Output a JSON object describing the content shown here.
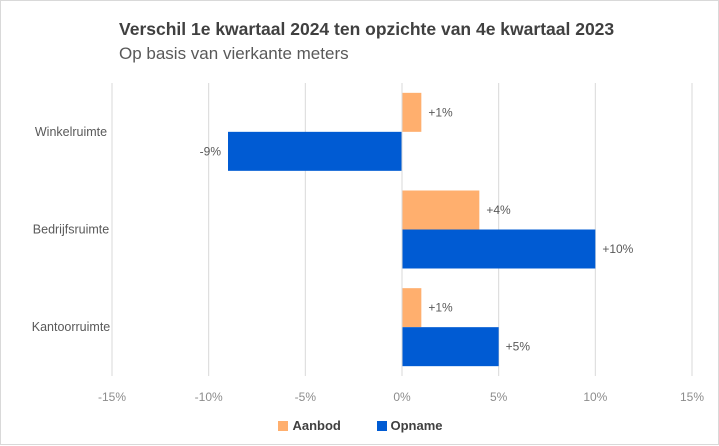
{
  "chart_data": {
    "type": "bar",
    "orientation": "horizontal",
    "title": "Verschil 1e kwartaal 2024 ten opzichte van 4e kwartaal 2023",
    "subtitle": "Op basis van vierkante meters",
    "categories": [
      "Winkelruimte",
      "Bedrijfsruimte",
      "Kantoorruimte"
    ],
    "series": [
      {
        "name": "Aanbod",
        "color": "#ffaf6e",
        "values": [
          1,
          4,
          1
        ],
        "labels": [
          "+1%",
          "+4%",
          "+1%"
        ]
      },
      {
        "name": "Opname",
        "color": "#005bd3",
        "values": [
          -9,
          10,
          5
        ],
        "labels": [
          "-9%",
          "+10%",
          "+5%"
        ]
      }
    ],
    "xlim": [
      -15,
      15
    ],
    "xticks": [
      -15,
      -10,
      -5,
      0,
      5,
      10,
      15
    ],
    "xtick_labels": [
      "-15%",
      "-10%",
      "-5%",
      "0%",
      "5%",
      "10%",
      "15%"
    ],
    "grid": true,
    "legend": "bottom"
  }
}
